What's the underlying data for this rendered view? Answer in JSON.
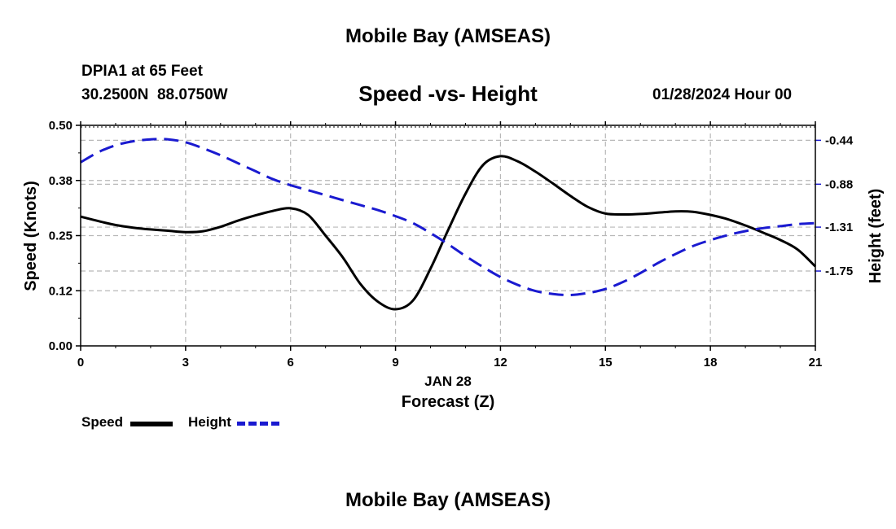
{
  "page": {
    "top_title": "Mobile Bay (AMSEAS)",
    "bottom_title": "Mobile Bay (AMSEAS)",
    "station_line": "DPIA1 at 65 Feet",
    "coords_line": "30.2500N  88.0750W",
    "date_line": "01/28/2024 Hour 00"
  },
  "legend": {
    "speed_label": "Speed",
    "height_label": "Height"
  },
  "colors": {
    "speed": "#000000",
    "height": "#1a1ad0",
    "grid": "#b8b8b8"
  },
  "chart_data": {
    "type": "line",
    "title": "Speed -vs- Height",
    "xlabel": "Forecast (Z)",
    "x_sublabel": "JAN 28",
    "ylabel_left": "Speed (Knots)",
    "ylabel_right": "Height (feet)",
    "xlim": [
      0,
      21
    ],
    "x_ticks": [
      0,
      3,
      6,
      9,
      12,
      15,
      18,
      21
    ],
    "ylim_left": [
      0,
      0.5
    ],
    "y_ticks_left": [
      0.0,
      0.125,
      0.25,
      0.375,
      0.5
    ],
    "y_ticklabels_left": [
      "0.00",
      "0.12",
      "0.25",
      "0.38",
      "0.50"
    ],
    "ylim_right": [
      -2.5,
      -0.29
    ],
    "y_ticks_right": [
      -0.44,
      -0.88,
      -1.31,
      -1.75
    ],
    "y_ticklabels_right": [
      "-0.44",
      "-0.88",
      "-1.31",
      "-1.75"
    ],
    "grid": true,
    "series": [
      {
        "name": "Speed",
        "axis": "left",
        "style": "solid",
        "x": [
          0,
          0.5,
          1,
          1.5,
          2,
          2.5,
          3,
          3.5,
          4,
          4.5,
          5,
          5.5,
          6,
          6.5,
          7,
          7.5,
          8,
          8.5,
          9,
          9.5,
          10,
          10.5,
          11,
          11.5,
          12,
          12.5,
          13,
          13.5,
          14,
          14.5,
          15,
          15.5,
          16,
          16.5,
          17,
          17.5,
          18,
          18.5,
          19,
          19.5,
          20,
          20.5,
          21
        ],
        "values": [
          0.293,
          0.283,
          0.274,
          0.268,
          0.264,
          0.261,
          0.258,
          0.26,
          0.27,
          0.284,
          0.296,
          0.306,
          0.312,
          0.297,
          0.25,
          0.2,
          0.14,
          0.1,
          0.083,
          0.103,
          0.175,
          0.262,
          0.345,
          0.41,
          0.43,
          0.418,
          0.395,
          0.368,
          0.34,
          0.315,
          0.3,
          0.298,
          0.299,
          0.302,
          0.305,
          0.304,
          0.297,
          0.287,
          0.273,
          0.257,
          0.24,
          0.218,
          0.18
        ]
      },
      {
        "name": "Height",
        "axis": "right",
        "style": "dashed",
        "x": [
          0,
          0.5,
          1,
          1.5,
          2,
          2.5,
          3,
          3.5,
          4,
          4.5,
          5,
          5.5,
          6,
          6.5,
          7,
          7.5,
          8,
          8.5,
          9,
          9.5,
          10,
          10.5,
          11,
          11.5,
          12,
          12.5,
          13,
          13.5,
          14,
          14.5,
          15,
          15.5,
          16,
          16.5,
          17,
          17.5,
          18,
          18.5,
          19,
          19.5,
          20,
          20.5,
          21
        ],
        "values": [
          -0.66,
          -0.56,
          -0.49,
          -0.45,
          -0.43,
          -0.43,
          -0.46,
          -0.52,
          -0.59,
          -0.67,
          -0.75,
          -0.83,
          -0.89,
          -0.94,
          -0.99,
          -1.04,
          -1.09,
          -1.14,
          -1.2,
          -1.27,
          -1.37,
          -1.48,
          -1.6,
          -1.71,
          -1.81,
          -1.89,
          -1.95,
          -1.98,
          -1.99,
          -1.97,
          -1.93,
          -1.86,
          -1.77,
          -1.67,
          -1.58,
          -1.5,
          -1.44,
          -1.39,
          -1.35,
          -1.32,
          -1.3,
          -1.28,
          -1.27
        ]
      }
    ]
  }
}
